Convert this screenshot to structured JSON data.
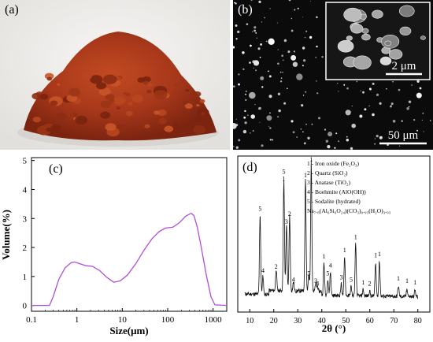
{
  "panels": {
    "a": {
      "label": "(a)"
    },
    "b": {
      "label": "(b)",
      "inset_scale": "2 μm",
      "main_scale": "50 μm"
    },
    "c": {
      "label": "(c)"
    },
    "d": {
      "label": "(d)"
    }
  },
  "chart_data": [
    {
      "type": "line",
      "xlabel": "Size(μm)",
      "ylabel": "Volume(%)",
      "xscale": "log",
      "xlim": [
        0.1,
        2000
      ],
      "ylim": [
        -0.2,
        5.1
      ],
      "x_ticks": [
        "0.1",
        "1",
        "10",
        "100",
        "1000"
      ],
      "y_ticks": [
        "0",
        "1",
        "2",
        "3",
        "4",
        "5"
      ],
      "color": "#b04fd6",
      "series": [
        {
          "x": [
            0.1,
            0.25,
            0.3,
            0.4,
            0.55,
            0.75,
            0.9,
            1.2,
            1.6,
            2.2,
            3.2,
            4.5,
            6.5,
            9,
            13,
            20,
            30,
            45,
            65,
            90,
            130,
            180,
            250,
            330,
            380,
            450,
            550,
            700,
            900,
            1100,
            2000
          ],
          "y": [
            0,
            0,
            0.3,
            0.9,
            1.3,
            1.48,
            1.5,
            1.43,
            1.37,
            1.35,
            1.2,
            0.98,
            0.8,
            0.85,
            1.05,
            1.45,
            1.9,
            2.3,
            2.55,
            2.67,
            2.7,
            2.85,
            3.08,
            3.18,
            3.1,
            2.7,
            2.0,
            1.1,
            0.3,
            0.02,
            0
          ]
        }
      ]
    },
    {
      "type": "line",
      "xlabel": "2θ (°)",
      "ylabel": "",
      "xlim": [
        5,
        85
      ],
      "x_ticks": [
        "10",
        "20",
        "30",
        "40",
        "50",
        "60",
        "70",
        "80"
      ],
      "legend": [
        "1 - Iron oxide (Fe₂O₃)",
        "2 - Quartz (SiO₂)",
        "3 - Anatase (TiO₂)",
        "4 - Boehmite (AlO(OH))",
        "5 - Sodalite (hydrated)",
        "Na₇.₆(Al₆Si₆O₂₄)(CO₃)₀.₉₃(H₂O)₃.₉₃"
      ],
      "legend_position": "top-right",
      "peaks": [
        {
          "x": 14.3,
          "h": 0.62,
          "labels": [
            "5"
          ]
        },
        {
          "x": 15.5,
          "h": 0.14,
          "labels": [
            "4"
          ]
        },
        {
          "x": 21.0,
          "h": 0.17,
          "labels": [
            "2"
          ]
        },
        {
          "x": 24.2,
          "h": 0.85,
          "labels": [
            "5",
            "1"
          ]
        },
        {
          "x": 25.3,
          "h": 0.52,
          "labels": [
            "3"
          ]
        },
        {
          "x": 26.6,
          "h": 0.58,
          "labels": [
            "2"
          ]
        },
        {
          "x": 28.2,
          "h": 0.07,
          "labels": [
            "4"
          ]
        },
        {
          "x": 33.2,
          "h": 0.88,
          "labels": [
            "1"
          ]
        },
        {
          "x": 34.6,
          "h": 0.12,
          "labels": [
            "5"
          ]
        },
        {
          "x": 35.6,
          "h": 1.0,
          "labels": [
            "1"
          ]
        },
        {
          "x": 37.5,
          "h": 0.06,
          "labels": [
            "3"
          ]
        },
        {
          "x": 38.2,
          "h": 0.04,
          "labels": [
            "4"
          ]
        },
        {
          "x": 40.9,
          "h": 0.25,
          "labels": [
            "1"
          ]
        },
        {
          "x": 42.5,
          "h": 0.12,
          "labels": [
            "5"
          ]
        },
        {
          "x": 43.6,
          "h": 0.18,
          "labels": [
            "4"
          ]
        },
        {
          "x": 48.1,
          "h": 0.09,
          "labels": [
            "3"
          ]
        },
        {
          "x": 49.5,
          "h": 0.3,
          "labels": [
            "1"
          ]
        },
        {
          "x": 52.2,
          "h": 0.07,
          "labels": [
            "5"
          ]
        },
        {
          "x": 54.1,
          "h": 0.4,
          "labels": [
            "1"
          ]
        },
        {
          "x": 57.2,
          "h": 0.05,
          "labels": [
            "1"
          ]
        },
        {
          "x": 59.9,
          "h": 0.04,
          "labels": [
            "2"
          ]
        },
        {
          "x": 62.4,
          "h": 0.26,
          "labels": [
            "1"
          ]
        },
        {
          "x": 64.0,
          "h": 0.27,
          "labels": [
            "1"
          ]
        },
        {
          "x": 71.9,
          "h": 0.08,
          "labels": [
            "1"
          ]
        },
        {
          "x": 75.5,
          "h": 0.06,
          "labels": [
            "1"
          ]
        },
        {
          "x": 78.8,
          "h": 0.05,
          "labels": [
            "1"
          ]
        }
      ]
    }
  ]
}
